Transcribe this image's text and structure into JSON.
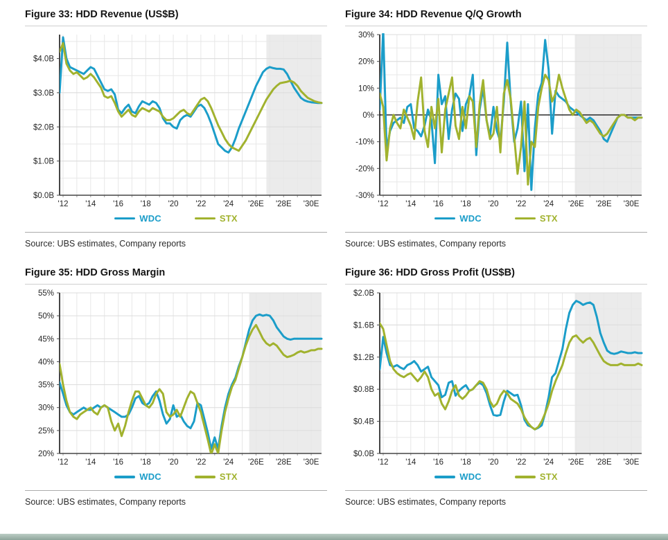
{
  "legend": {
    "wdc_label": "WDC",
    "stx_label": "STX"
  },
  "source_text": "Source: UBS estimates, Company reports",
  "colors": {
    "wdc": "#1b9dc9",
    "stx": "#a1b22e",
    "forecast_shade": "#ebebeb",
    "grid_major": "#dcdcdc",
    "grid_minor": "#e7e7e7",
    "axis": "#454545",
    "zero_line": "#000000",
    "footer_bar": "#8ea59b"
  },
  "chart_data": [
    {
      "type": "line",
      "title": "Figure 33: HDD Revenue (US$B)",
      "x_start": 2011.75,
      "x_step": 0.25,
      "x_domain": [
        2011.75,
        2030.75
      ],
      "y_domain": [
        0,
        4.7
      ],
      "y_minor_step": 0.5,
      "zero_line": false,
      "forecast_start": 2026.75,
      "x_ticks": [
        {
          "v": 2012,
          "label": "'12"
        },
        {
          "v": 2014,
          "label": "'14"
        },
        {
          "v": 2016,
          "label": "'16"
        },
        {
          "v": 2018,
          "label": "'18"
        },
        {
          "v": 2020,
          "label": "'20"
        },
        {
          "v": 2022,
          "label": "'22"
        },
        {
          "v": 2024,
          "label": "'24"
        },
        {
          "v": 2026,
          "label": "'26E"
        },
        {
          "v": 2028,
          "label": "'28E"
        },
        {
          "v": 2030,
          "label": "'30E"
        }
      ],
      "y_ticks": [
        {
          "v": 4,
          "label": "$4.0B"
        },
        {
          "v": 3,
          "label": "$3.0B"
        },
        {
          "v": 2,
          "label": "$2.0B"
        },
        {
          "v": 1,
          "label": "$1.0B"
        },
        {
          "v": 0,
          "label": "$0.0B"
        }
      ],
      "series": [
        {
          "name": "WDC",
          "color_key": "wdc",
          "values": [
            3.0,
            4.62,
            4.0,
            3.75,
            3.7,
            3.65,
            3.6,
            3.55,
            3.65,
            3.75,
            3.7,
            3.5,
            3.3,
            3.1,
            3.05,
            3.1,
            2.95,
            2.5,
            2.4,
            2.55,
            2.65,
            2.45,
            2.4,
            2.6,
            2.75,
            2.7,
            2.65,
            2.75,
            2.7,
            2.55,
            2.25,
            2.1,
            2.1,
            2.0,
            1.95,
            2.2,
            2.3,
            2.35,
            2.3,
            2.45,
            2.6,
            2.65,
            2.55,
            2.35,
            2.1,
            1.8,
            1.5,
            1.4,
            1.3,
            1.25,
            1.4,
            1.65,
            1.95,
            2.2,
            2.45,
            2.7,
            2.95,
            3.2,
            3.4,
            3.6,
            3.7,
            3.75,
            3.72,
            3.7,
            3.7,
            3.68,
            3.55,
            3.35,
            3.15,
            3.0,
            2.85,
            2.78,
            2.74,
            2.72,
            2.71,
            2.7,
            2.7
          ]
        },
        {
          "name": "STX",
          "color_key": "stx",
          "values": [
            4.2,
            4.45,
            3.85,
            3.65,
            3.55,
            3.6,
            3.5,
            3.4,
            3.45,
            3.55,
            3.45,
            3.3,
            3.15,
            2.9,
            2.85,
            2.9,
            2.7,
            2.45,
            2.3,
            2.4,
            2.5,
            2.35,
            2.3,
            2.45,
            2.55,
            2.5,
            2.45,
            2.55,
            2.5,
            2.45,
            2.3,
            2.2,
            2.2,
            2.25,
            2.35,
            2.45,
            2.5,
            2.4,
            2.35,
            2.5,
            2.65,
            2.8,
            2.85,
            2.75,
            2.55,
            2.3,
            2.05,
            1.85,
            1.65,
            1.5,
            1.4,
            1.35,
            1.3,
            1.45,
            1.6,
            1.8,
            2.0,
            2.2,
            2.4,
            2.6,
            2.8,
            2.95,
            3.1,
            3.2,
            3.28,
            3.3,
            3.32,
            3.35,
            3.3,
            3.2,
            3.05,
            2.95,
            2.85,
            2.8,
            2.75,
            2.72,
            2.7
          ]
        }
      ]
    },
    {
      "type": "line",
      "title": "Figure 34: HDD Revenue Q/Q Growth",
      "x_start": 2011.75,
      "x_step": 0.25,
      "x_domain": [
        2011.75,
        2030.75
      ],
      "y_domain": [
        -30,
        30
      ],
      "y_minor_step": 5,
      "zero_line": true,
      "forecast_start": 2025.9,
      "x_ticks": [
        {
          "v": 2012,
          "label": "'12"
        },
        {
          "v": 2014,
          "label": "'14"
        },
        {
          "v": 2016,
          "label": "'16"
        },
        {
          "v": 2018,
          "label": "'18"
        },
        {
          "v": 2020,
          "label": "'20"
        },
        {
          "v": 2022,
          "label": "'22"
        },
        {
          "v": 2024,
          "label": "'24"
        },
        {
          "v": 2026,
          "label": "'26E"
        },
        {
          "v": 2028,
          "label": "'28E"
        },
        {
          "v": 2030,
          "label": "'30E"
        }
      ],
      "y_ticks": [
        {
          "v": 30,
          "label": "30%"
        },
        {
          "v": 20,
          "label": "20%"
        },
        {
          "v": 10,
          "label": "10%"
        },
        {
          "v": 0,
          "label": "0%"
        },
        {
          "v": -10,
          "label": "-10%"
        },
        {
          "v": -20,
          "label": "-20%"
        },
        {
          "v": -30,
          "label": "-30%"
        }
      ],
      "series": [
        {
          "name": "WDC",
          "color_key": "wdc",
          "values": [
            2,
            32,
            -13,
            -6,
            -3,
            -2,
            -1,
            -3,
            3,
            4,
            -5,
            -6,
            -8,
            -4,
            2,
            -2,
            -18,
            15,
            4,
            7,
            -9,
            2,
            8,
            6,
            -6,
            4,
            7,
            15,
            -15,
            2,
            10,
            -2,
            -8,
            3,
            -6,
            -10,
            5,
            27,
            5,
            -10,
            -5,
            5,
            -21,
            4,
            -28,
            -5,
            8,
            12,
            28,
            17,
            -7,
            9,
            7,
            6,
            5,
            3,
            2,
            1,
            0,
            -1,
            -2,
            -1,
            -2,
            -4,
            -6,
            -9,
            -10,
            -7,
            -4,
            -1,
            0,
            0,
            -1,
            -1,
            -1,
            -1,
            -1
          ]
        },
        {
          "name": "STX",
          "color_key": "stx",
          "values": [
            8,
            3,
            -17,
            -5,
            0,
            -3,
            -5,
            2,
            -1,
            -4,
            -9,
            5,
            14,
            -6,
            -12,
            3,
            -5,
            6,
            -14,
            2,
            8,
            14,
            -4,
            -9,
            3,
            -5,
            7,
            5,
            -12,
            4,
            13,
            -2,
            -9,
            -7,
            3,
            -14,
            8,
            13,
            6,
            -8,
            -22,
            -12,
            5,
            -26,
            -10,
            -12,
            3,
            10,
            15,
            13,
            5,
            8,
            15,
            10,
            6,
            2,
            0,
            2,
            1,
            -1,
            -3,
            -2,
            -3,
            -5,
            -7,
            -8,
            -7,
            -5,
            -3,
            -1,
            0,
            0,
            -1,
            -1,
            -2,
            -1,
            -1
          ]
        }
      ]
    },
    {
      "type": "line",
      "title": "Figure 35: HDD Gross Margin",
      "x_start": 2011.75,
      "x_step": 0.25,
      "x_domain": [
        2011.75,
        2030.75
      ],
      "y_domain": [
        20,
        55
      ],
      "y_minor_step": null,
      "zero_line": false,
      "forecast_start": 2025.5,
      "x_ticks": [
        {
          "v": 2012,
          "label": "'12"
        },
        {
          "v": 2014,
          "label": "'14"
        },
        {
          "v": 2016,
          "label": "'16"
        },
        {
          "v": 2018,
          "label": "'18"
        },
        {
          "v": 2020,
          "label": "'20"
        },
        {
          "v": 2022,
          "label": "'22"
        },
        {
          "v": 2024,
          "label": "'24"
        },
        {
          "v": 2026,
          "label": "'26E"
        },
        {
          "v": 2028,
          "label": "'28E"
        },
        {
          "v": 2030,
          "label": "'30E"
        }
      ],
      "y_ticks": [
        {
          "v": 55,
          "label": "55%"
        },
        {
          "v": 50,
          "label": "50%"
        },
        {
          "v": 45,
          "label": "45%"
        },
        {
          "v": 40,
          "label": "40%"
        },
        {
          "v": 35,
          "label": "35%"
        },
        {
          "v": 30,
          "label": "30%"
        },
        {
          "v": 25,
          "label": "25%"
        },
        {
          "v": 20,
          "label": "20%"
        }
      ],
      "series": [
        {
          "name": "WDC",
          "color_key": "wdc",
          "values": [
            35.5,
            33,
            30.5,
            29,
            28.5,
            29,
            29.5,
            30,
            29.5,
            29.5,
            30,
            30.5,
            30,
            30.5,
            30,
            29.5,
            29,
            28.5,
            28,
            28,
            28.5,
            30,
            32,
            32.5,
            31,
            30.5,
            31,
            32.5,
            33.5,
            31.5,
            28.5,
            26.5,
            27.5,
            30.5,
            28,
            28.5,
            27,
            26,
            25.5,
            27,
            31,
            30.5,
            27.5,
            24.5,
            21,
            23.5,
            21,
            26,
            30,
            33,
            35,
            36.5,
            39,
            41,
            44,
            47,
            49,
            50,
            50.3,
            50,
            50.2,
            50,
            49,
            47.5,
            46.5,
            45.5,
            45,
            44.8,
            45,
            45,
            45,
            45,
            45,
            45,
            45,
            45,
            45
          ]
        },
        {
          "name": "STX",
          "color_key": "stx",
          "values": [
            39.5,
            35,
            31.5,
            29,
            28,
            27.5,
            28.5,
            29,
            29.5,
            30,
            29,
            28.5,
            30,
            30.5,
            30,
            27,
            25,
            26.5,
            23.8,
            26,
            29,
            31.5,
            33.5,
            33.5,
            32,
            30.5,
            30,
            31,
            33,
            34,
            33,
            29,
            28,
            28.5,
            29.5,
            28,
            30,
            32,
            33.5,
            33,
            31,
            29,
            26,
            23,
            19.8,
            22,
            20,
            25,
            29,
            32,
            34.5,
            36,
            38.5,
            41,
            43.5,
            45.5,
            47,
            48,
            46.5,
            45,
            44,
            43.5,
            44,
            43.5,
            42.5,
            41.5,
            41,
            41.2,
            41.5,
            42,
            42.3,
            42,
            42.2,
            42.5,
            42.5,
            42.8,
            42.8
          ]
        }
      ]
    },
    {
      "type": "line",
      "title": "Figure 36: HDD Gross Profit (US$B)",
      "x_start": 2011.75,
      "x_step": 0.25,
      "x_domain": [
        2011.75,
        2030.75
      ],
      "y_domain": [
        0,
        2.0
      ],
      "y_minor_step": 0.2,
      "zero_line": false,
      "forecast_start": 2025.9,
      "x_ticks": [
        {
          "v": 2012,
          "label": "'12"
        },
        {
          "v": 2014,
          "label": "'14"
        },
        {
          "v": 2016,
          "label": "'16"
        },
        {
          "v": 2018,
          "label": "'18"
        },
        {
          "v": 2020,
          "label": "'20"
        },
        {
          "v": 2022,
          "label": "'22"
        },
        {
          "v": 2024,
          "label": "'24"
        },
        {
          "v": 2026,
          "label": "'26E"
        },
        {
          "v": 2028,
          "label": "'28E"
        },
        {
          "v": 2030,
          "label": "'30E"
        }
      ],
      "y_ticks": [
        {
          "v": 2.0,
          "label": "$2.0B"
        },
        {
          "v": 1.6,
          "label": "$1.6B"
        },
        {
          "v": 1.2,
          "label": "$1.2B"
        },
        {
          "v": 0.8,
          "label": "$0.8B"
        },
        {
          "v": 0.4,
          "label": "$0.4B"
        },
        {
          "v": 0,
          "label": "$0.0B"
        }
      ],
      "series": [
        {
          "name": "WDC",
          "color_key": "wdc",
          "values": [
            1.05,
            1.45,
            1.25,
            1.1,
            1.08,
            1.1,
            1.07,
            1.05,
            1.1,
            1.12,
            1.15,
            1.1,
            1.02,
            1.05,
            1.08,
            0.95,
            0.9,
            0.85,
            0.7,
            0.73,
            0.88,
            0.9,
            0.72,
            0.78,
            0.82,
            0.85,
            0.78,
            0.8,
            0.85,
            0.88,
            0.85,
            0.75,
            0.6,
            0.48,
            0.47,
            0.48,
            0.65,
            0.78,
            0.75,
            0.72,
            0.73,
            0.6,
            0.42,
            0.35,
            0.33,
            0.3,
            0.32,
            0.35,
            0.5,
            0.7,
            0.95,
            1.0,
            1.15,
            1.3,
            1.55,
            1.75,
            1.85,
            1.9,
            1.88,
            1.85,
            1.87,
            1.88,
            1.85,
            1.7,
            1.5,
            1.38,
            1.28,
            1.25,
            1.24,
            1.25,
            1.27,
            1.26,
            1.25,
            1.25,
            1.26,
            1.25,
            1.25
          ]
        },
        {
          "name": "STX",
          "color_key": "stx",
          "values": [
            1.62,
            1.55,
            1.35,
            1.15,
            1.05,
            1.0,
            0.97,
            0.95,
            0.98,
            1.0,
            0.95,
            0.9,
            0.95,
            1.02,
            0.95,
            0.8,
            0.72,
            0.75,
            0.62,
            0.55,
            0.65,
            0.78,
            0.85,
            0.72,
            0.68,
            0.72,
            0.78,
            0.8,
            0.85,
            0.9,
            0.88,
            0.8,
            0.65,
            0.58,
            0.62,
            0.72,
            0.78,
            0.75,
            0.68,
            0.65,
            0.62,
            0.55,
            0.45,
            0.38,
            0.33,
            0.3,
            0.33,
            0.4,
            0.5,
            0.62,
            0.78,
            0.9,
            1.0,
            1.1,
            1.25,
            1.38,
            1.45,
            1.47,
            1.42,
            1.38,
            1.42,
            1.44,
            1.38,
            1.3,
            1.22,
            1.15,
            1.12,
            1.1,
            1.1,
            1.1,
            1.12,
            1.1,
            1.1,
            1.1,
            1.1,
            1.12,
            1.1
          ]
        }
      ]
    }
  ]
}
